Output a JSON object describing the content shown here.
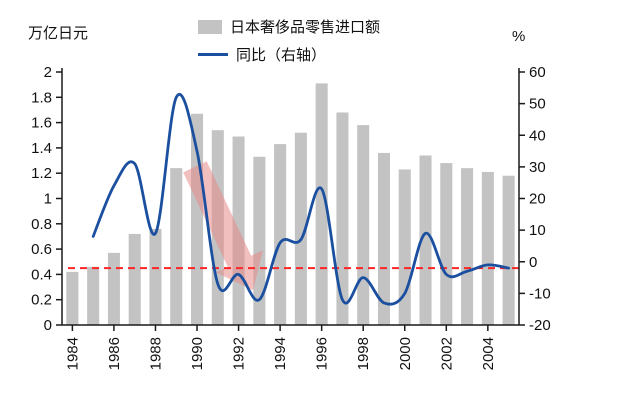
{
  "chart": {
    "left_unit": "万亿日元",
    "right_unit": "%"
  },
  "chart_data": {
    "type": "bar",
    "title": "",
    "left_unit": "万亿日元",
    "right_unit": "%",
    "categories": [
      1984,
      1985,
      1986,
      1987,
      1988,
      1989,
      1990,
      1991,
      1992,
      1993,
      1994,
      1995,
      1996,
      1997,
      1998,
      1999,
      2000,
      2001,
      2002,
      2003,
      2004,
      2005
    ],
    "series": [
      {
        "name": "日本奢侈品零售进口额",
        "type": "bar",
        "axis": "left",
        "color": "#c3c3c3",
        "values": [
          0.42,
          0.46,
          0.57,
          0.72,
          0.76,
          1.24,
          1.67,
          1.54,
          1.49,
          1.33,
          1.43,
          1.52,
          1.91,
          1.68,
          1.58,
          1.36,
          1.23,
          1.34,
          1.28,
          1.24,
          1.21,
          1.18
        ]
      },
      {
        "name": "同比（右轴）",
        "type": "line",
        "axis": "right",
        "color": "#1b4f9f",
        "x": [
          1985,
          1986,
          1987,
          1988,
          1989,
          1990,
          1991,
          1992,
          1993,
          1994,
          1995,
          1996,
          1997,
          1998,
          1999,
          2000,
          2001,
          2002,
          2003,
          2004,
          2005
        ],
        "values": [
          8,
          24,
          31,
          9,
          52,
          35,
          -7,
          -4,
          -12,
          6,
          7,
          23,
          -12,
          -5,
          -13,
          -10,
          9,
          -4,
          -3,
          -1,
          -2
        ]
      }
    ],
    "left_axis": {
      "min": 0,
      "max": 2,
      "ticks": [
        0,
        0.2,
        0.4,
        0.6,
        0.8,
        1,
        1.2,
        1.4,
        1.6,
        1.8,
        2
      ]
    },
    "right_axis": {
      "min": -20,
      "max": 60,
      "ticks": [
        -20,
        -10,
        0,
        10,
        20,
        30,
        40,
        50,
        60
      ]
    },
    "x_ticks": [
      1984,
      1986,
      1988,
      1990,
      1992,
      1994,
      1996,
      1998,
      2000,
      2002,
      2004
    ],
    "reference_line": {
      "axis": "right",
      "value": -2,
      "color": "#ff2626",
      "style": "dashed"
    },
    "annotation_arrow": {
      "from_x": 1989.9,
      "from_right": 30,
      "to_x": 1992.7,
      "to_right": -9,
      "color": "#e88a8a",
      "opacity": 0.55
    },
    "legend_position": "top-center",
    "grid": false
  }
}
